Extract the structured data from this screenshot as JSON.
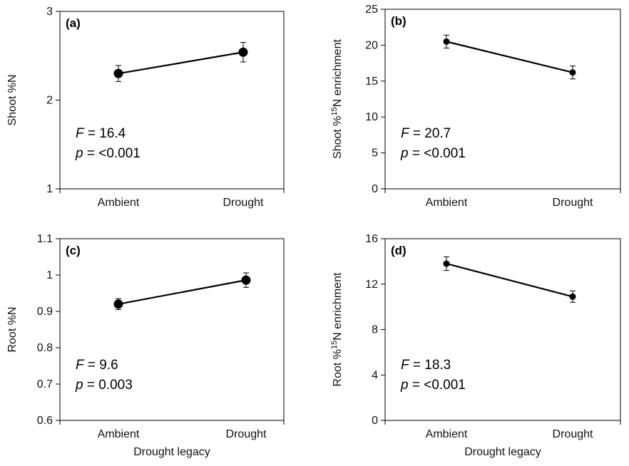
{
  "chart_data": [
    {
      "type": "line",
      "panel": "(a)",
      "categories": [
        "Ambient",
        "Drought"
      ],
      "values": [
        2.3,
        2.54
      ],
      "errors": [
        0.09,
        0.11
      ],
      "ylabel": "Shoot %N",
      "xlabel": "",
      "ylim": [
        1,
        3
      ],
      "yticks": [
        "1",
        "2",
        "3"
      ],
      "stat_f": "16.4",
      "stat_p": "<0.001",
      "marker": "large"
    },
    {
      "type": "line",
      "panel": "(b)",
      "categories": [
        "Ambient",
        "Drought"
      ],
      "values": [
        20.5,
        16.2
      ],
      "errors": [
        0.9,
        0.9
      ],
      "ylabel_pre": "Shoot %",
      "ylabel_sup": "15",
      "ylabel_post": "N enrichment",
      "xlabel": "",
      "ylim": [
        0,
        25
      ],
      "yticks": [
        "0",
        "5",
        "10",
        "15",
        "20",
        "25"
      ],
      "stat_f": "20.7",
      "stat_p": "<0.001",
      "marker": "small"
    },
    {
      "type": "line",
      "panel": "(c)",
      "categories": [
        "Ambient",
        "Drought"
      ],
      "values": [
        0.92,
        0.986
      ],
      "errors": [
        0.015,
        0.02
      ],
      "ylabel": "Root %N",
      "xlabel": "Drought legacy",
      "ylim": [
        0.6,
        1.1
      ],
      "yticks": [
        "0.6",
        "0.7",
        "0.8",
        "0.9",
        "1",
        "1.1"
      ],
      "stat_f": "9.6",
      "stat_p": "0.003",
      "marker": "large"
    },
    {
      "type": "line",
      "panel": "(d)",
      "categories": [
        "Ambient",
        "Drought"
      ],
      "values": [
        13.8,
        10.9
      ],
      "errors": [
        0.6,
        0.5
      ],
      "ylabel_pre": "Root %",
      "ylabel_sup": "15",
      "ylabel_post": "N enrichment",
      "xlabel": "Drought legacy",
      "ylim": [
        0,
        16
      ],
      "yticks": [
        "0",
        "4",
        "8",
        "12",
        "16"
      ],
      "stat_f": "18.3",
      "stat_p": "<0.001",
      "marker": "small"
    }
  ],
  "labels": {
    "f_symbol": "F",
    "p_symbol": "p",
    "equals": " = "
  }
}
